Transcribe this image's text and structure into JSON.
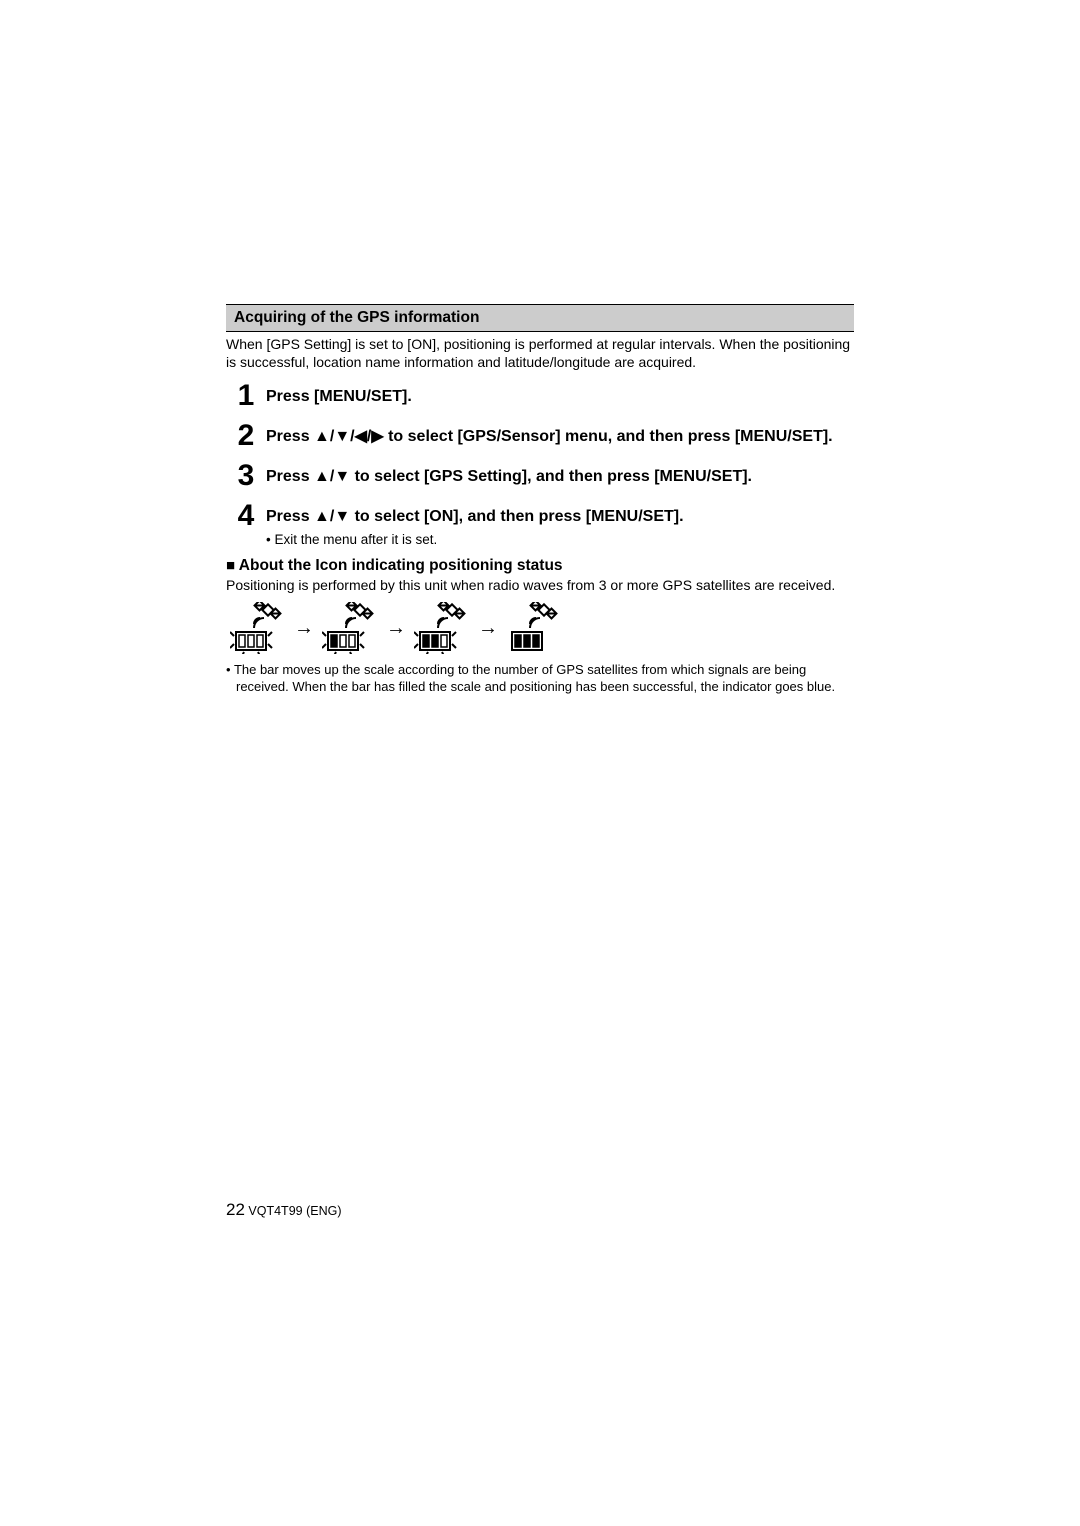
{
  "colors": {
    "page_bg": "#ffffff",
    "text": "#000000",
    "heading_bg": "#cccccc",
    "heading_border": "#000000"
  },
  "typography": {
    "body_fontsize": 14,
    "step_num_fontsize": 30,
    "step_instr_fontsize": 16,
    "heading_fontsize": 15.5,
    "footnote_fontsize": 13,
    "footer_fontsize": 12.5
  },
  "heading": "Acquiring of the GPS information",
  "intro": "When [GPS Setting] is set to [ON], positioning is performed at regular intervals. When the positioning is successful, location name information and latitude/longitude are acquired.",
  "steps": [
    {
      "n": "1",
      "text": "Press [MENU/SET]."
    },
    {
      "n": "2",
      "text": "Press ▲/▼/◀/▶ to select [GPS/Sensor] menu, and then press [MENU/SET]."
    },
    {
      "n": "3",
      "text": "Press ▲/▼ to select [GPS Setting], and then press [MENU/SET]."
    },
    {
      "n": "4",
      "text": "Press ▲/▼ to select [ON], and then press [MENU/SET].",
      "sub": "Exit the menu after it is set."
    }
  ],
  "subheading_prefix": "■",
  "subheading": "About the Icon indicating positioning status",
  "subtext": "Positioning is performed by this unit when radio waves from 3 or more GPS satellites are received.",
  "gps_icons": {
    "arrow": "→",
    "stages": [
      {
        "bars_filled": 0,
        "dashed": true
      },
      {
        "bars_filled": 1,
        "dashed": true
      },
      {
        "bars_filled": 2,
        "dashed": true
      },
      {
        "bars_filled": 3,
        "dashed": false
      }
    ],
    "stroke": "#000000",
    "fill_empty": "#ffffff",
    "fill_filled": "#000000"
  },
  "footnote": "The bar moves up the scale according to the number of GPS satellites from which signals are being received. When the bar has filled the scale and positioning has been successful, the indicator goes blue.",
  "footer": {
    "page": "22",
    "code": "VQT4T99 (ENG)"
  }
}
